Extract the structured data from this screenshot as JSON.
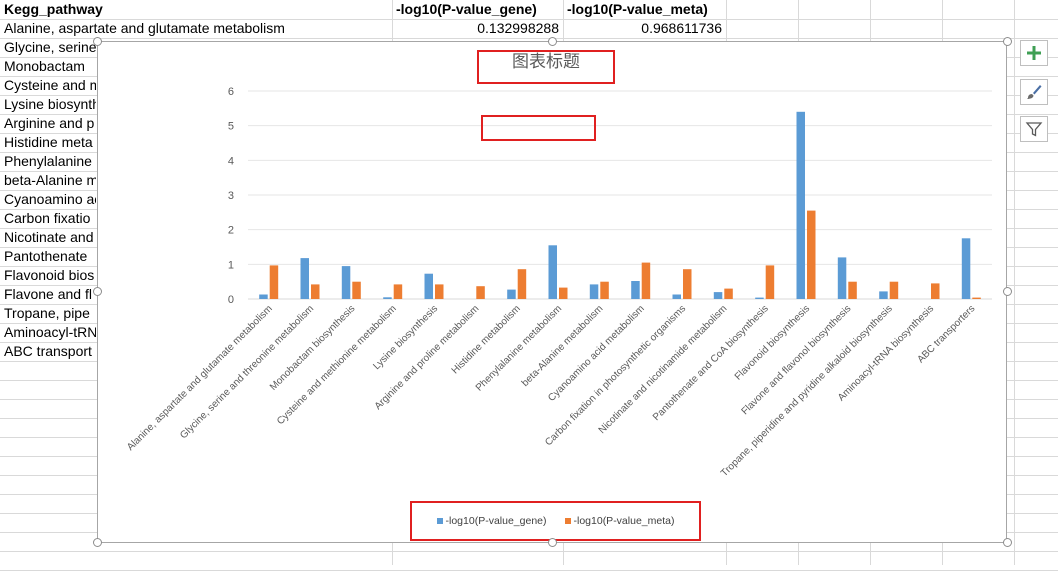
{
  "sheet": {
    "headers": [
      "Kegg_pathway",
      "-log10(P-value_gene)",
      "-log10(P-value_meta)"
    ],
    "first_row": {
      "pathway": "Alanine, aspartate and glutamate metabolism",
      "gene": "0.132998288",
      "meta": "0.968611736"
    },
    "pathway_cells": [
      "Glycine, serine",
      "Monobactam",
      "Cysteine and m",
      "Lysine biosynth",
      "Arginine and p",
      "Histidine meta",
      "Phenylalanine",
      "beta-Alanine m",
      "Cyanoamino ac",
      "Carbon fixatio",
      "Nicotinate and",
      "Pantothenate",
      "Flavonoid bios",
      "Flavone and fl",
      "Tropane, pipe",
      "Aminoacyl-tRN",
      "ABC transport"
    ]
  },
  "chart_data": {
    "type": "bar",
    "title": "图表标题",
    "xlabel": "",
    "ylabel": "",
    "ylim": [
      0,
      6
    ],
    "yticks": [
      0,
      1,
      2,
      3,
      4,
      5,
      6
    ],
    "grid": true,
    "legend_position": "bottom",
    "categories": [
      "Alanine, aspartate and glutamate metabolism",
      "Glycine, serine and threonine metabolism",
      "Monobactam biosynthesis",
      "Cysteine and methionine metabolism",
      "Lysine biosynthesis",
      "Arginine and proline metabolism",
      "Histidine metabolism",
      "Phenylalanine metabolism",
      "beta-Alanine metabolism",
      "Cyanoamino acid metabolism",
      "Carbon fixation in photosynthetic organisms",
      "Nicotinate and nicotinamide metabolism",
      "Pantothenate and CoA biosynthesis",
      "Flavonoid biosynthesis",
      "Flavone and flavonol biosynthesis",
      "Tropane, piperidine and pyridine alkaloid biosynthesis",
      "Aminoacyl-tRNA biosynthesis",
      "ABC transporters"
    ],
    "series": [
      {
        "name": "-log10(P-value_gene)",
        "color": "#5b9bd5",
        "values": [
          0.13,
          1.18,
          0.95,
          0.05,
          0.73,
          0.0,
          0.27,
          1.55,
          0.42,
          0.52,
          0.13,
          0.2,
          0.04,
          5.4,
          1.2,
          0.22,
          0.0,
          1.75
        ]
      },
      {
        "name": "-log10(P-value_meta)",
        "color": "#ed7d31",
        "values": [
          0.97,
          0.42,
          0.5,
          0.42,
          0.42,
          0.37,
          0.86,
          0.33,
          0.5,
          1.05,
          0.86,
          0.3,
          0.97,
          2.55,
          0.5,
          0.5,
          0.45,
          0.04
        ]
      }
    ]
  },
  "toolbar": {
    "add_icon": "plus-icon",
    "style_icon": "brush-icon",
    "filter_icon": "filter-icon"
  }
}
